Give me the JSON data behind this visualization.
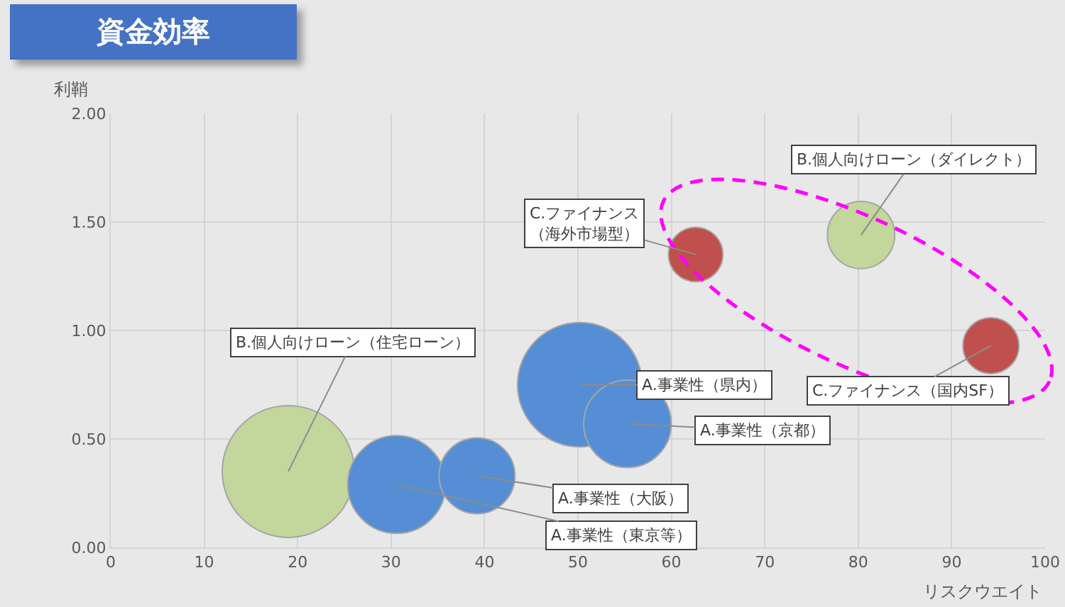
{
  "chart_data": {
    "type": "bubble",
    "title": "資金効率",
    "xlabel": "リスクウエイト",
    "ylabel": "利鞘",
    "x": [
      19,
      30.6,
      39.2,
      50.2,
      55.3,
      62.6,
      80.3,
      94.2
    ],
    "values": [
      0.35,
      0.29,
      0.33,
      0.75,
      0.57,
      1.35,
      1.44,
      0.93
    ],
    "sizes": [
      1,
      0.55,
      0.33,
      0.89,
      0.44,
      0.17,
      0.26,
      0.18
    ],
    "colors": [
      "#c3d69b",
      "#558ed5",
      "#558ed5",
      "#558ed5",
      "#558ed5",
      "#c0504d",
      "#c3d69b",
      "#c0504d"
    ],
    "annotations": [
      {
        "text": "B.個人向けローン（住宅ローン）",
        "x": 19,
        "y": 0.35
      },
      {
        "text": "A.事業性（東京等）",
        "x": 30.6,
        "y": 0.29
      },
      {
        "text": "A.事業性（大阪）",
        "x": 39.2,
        "y": 0.33
      },
      {
        "text": "A.事業性（県内）",
        "x": 50.2,
        "y": 0.75
      },
      {
        "text": "A.事業性（京都）",
        "x": 55.3,
        "y": 0.57
      },
      {
        "text": "C.ファイナンス（海外市場型）",
        "x": 62.6,
        "y": 1.35
      },
      {
        "text": "B.個人向けローン（ダイレクト）",
        "x": 80.3,
        "y": 1.44
      },
      {
        "text": "C.ファイナンス（国内SF）",
        "x": 94.2,
        "y": 0.93
      }
    ],
    "xlim": [
      0,
      100
    ],
    "ylim": [
      0,
      2
    ],
    "xticks": [
      0,
      10,
      20,
      30,
      40,
      50,
      60,
      70,
      80,
      90,
      100
    ],
    "yticks": [
      {
        "value": 0,
        "label": "0.00"
      },
      {
        "value": 0.5,
        "label": "0.50"
      },
      {
        "value": 1,
        "label": "1.00"
      },
      {
        "value": 1.5,
        "label": "1.50"
      },
      {
        "value": 2,
        "label": "2.00"
      }
    ],
    "grid": true
  }
}
